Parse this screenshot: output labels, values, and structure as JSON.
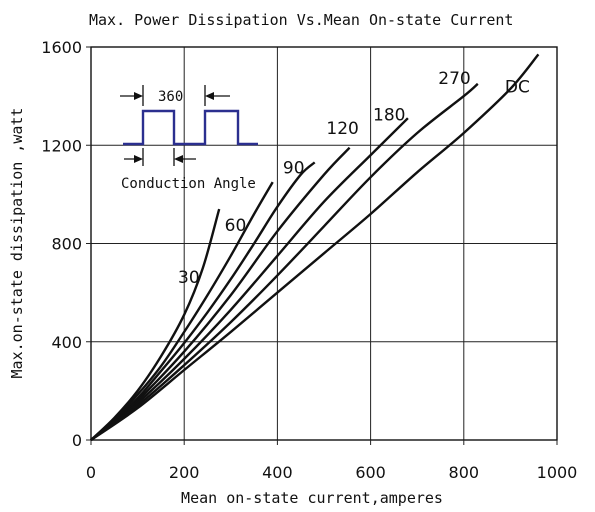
{
  "chart_data": {
    "type": "line",
    "title": "Max. Power Dissipation Vs.Mean On-state Current",
    "xlabel": "Mean on-state current,amperes",
    "ylabel": "Max.on-state dissipation ,watt",
    "xlim": [
      0,
      1000
    ],
    "ylim": [
      0,
      1600
    ],
    "x_ticks": [
      "0",
      "200",
      "400",
      "600",
      "800",
      "1000"
    ],
    "y_ticks": [
      "0",
      "400",
      "800",
      "1200",
      "1600"
    ],
    "grid": true,
    "series": [
      {
        "name": "30",
        "label_at": [
          210,
          640
        ],
        "points": [
          [
            0,
            0
          ],
          [
            50,
            90
          ],
          [
            100,
            200
          ],
          [
            150,
            340
          ],
          [
            200,
            510
          ],
          [
            240,
            700
          ],
          [
            275,
            940
          ]
        ]
      },
      {
        "name": "60",
        "label_at": [
          310,
          850
        ],
        "points": [
          [
            0,
            0
          ],
          [
            50,
            85
          ],
          [
            100,
            185
          ],
          [
            150,
            300
          ],
          [
            200,
            440
          ],
          [
            250,
            590
          ],
          [
            300,
            750
          ],
          [
            350,
            920
          ],
          [
            390,
            1050
          ]
        ]
      },
      {
        "name": "90",
        "label_at": [
          435,
          1085
        ],
        "points": [
          [
            0,
            0
          ],
          [
            50,
            80
          ],
          [
            100,
            170
          ],
          [
            150,
            280
          ],
          [
            200,
            395
          ],
          [
            250,
            520
          ],
          [
            300,
            655
          ],
          [
            350,
            800
          ],
          [
            400,
            950
          ],
          [
            450,
            1080
          ],
          [
            480,
            1130
          ]
        ]
      },
      {
        "name": "120",
        "label_at": [
          540,
          1245
        ],
        "points": [
          [
            0,
            0
          ],
          [
            50,
            75
          ],
          [
            100,
            160
          ],
          [
            200,
            360
          ],
          [
            300,
            590
          ],
          [
            400,
            850
          ],
          [
            500,
            1080
          ],
          [
            555,
            1190
          ]
        ]
      },
      {
        "name": "180",
        "label_at": [
          640,
          1300
        ],
        "points": [
          [
            0,
            0
          ],
          [
            50,
            72
          ],
          [
            100,
            150
          ],
          [
            200,
            330
          ],
          [
            300,
            530
          ],
          [
            400,
            750
          ],
          [
            500,
            970
          ],
          [
            600,
            1160
          ],
          [
            680,
            1310
          ]
        ]
      },
      {
        "name": "270",
        "label_at": [
          780,
          1450
        ],
        "points": [
          [
            0,
            0
          ],
          [
            100,
            140
          ],
          [
            200,
            305
          ],
          [
            300,
            480
          ],
          [
            400,
            670
          ],
          [
            500,
            870
          ],
          [
            600,
            1070
          ],
          [
            700,
            1250
          ],
          [
            800,
            1400
          ],
          [
            830,
            1450
          ]
        ]
      },
      {
        "name": "DC",
        "label_at": [
          915,
          1415
        ],
        "points": [
          [
            0,
            0
          ],
          [
            100,
            130
          ],
          [
            200,
            285
          ],
          [
            300,
            440
          ],
          [
            400,
            600
          ],
          [
            500,
            760
          ],
          [
            600,
            920
          ],
          [
            700,
            1090
          ],
          [
            800,
            1250
          ],
          [
            900,
            1430
          ],
          [
            960,
            1570
          ]
        ]
      }
    ],
    "inset": {
      "period_label": "360",
      "caption": "Conduction Angle"
    }
  }
}
